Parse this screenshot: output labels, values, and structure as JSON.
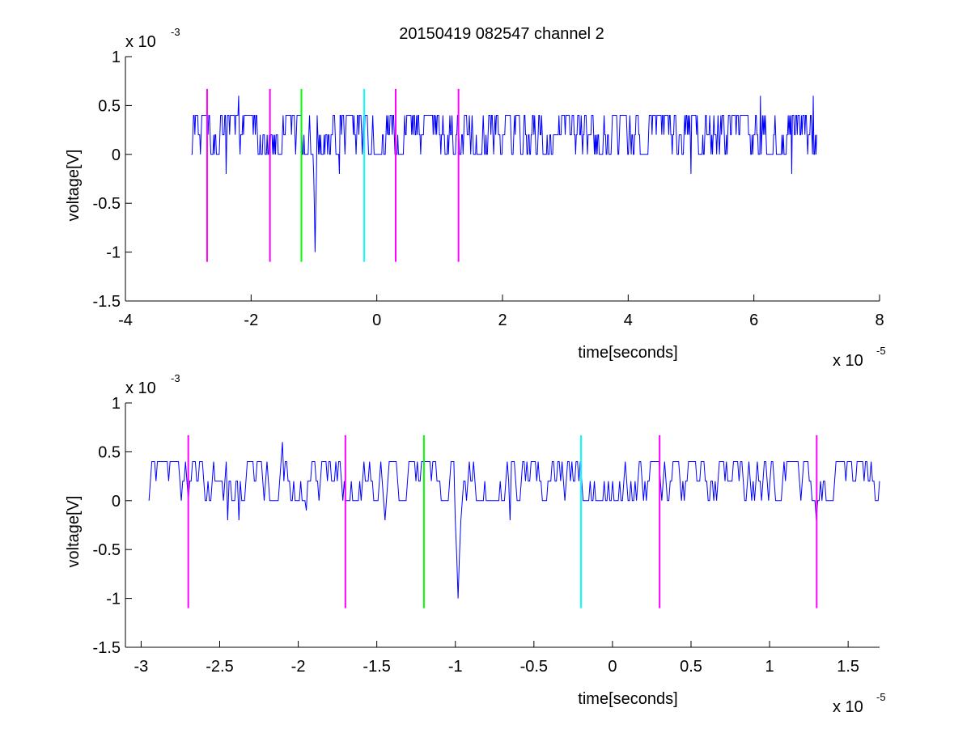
{
  "title": "20150419 082547 channel 2",
  "chart_data": [
    {
      "type": "line",
      "xlabel": "time[seconds]",
      "ylabel": "voltage[V]",
      "x_exponent_label": "x 10",
      "x_exponent": "-5",
      "y_exponent_label": "x 10",
      "y_exponent": "-3",
      "xlim": [
        -4e-05,
        8e-05
      ],
      "ylim": [
        -0.0015,
        0.001
      ],
      "x_ticks": [
        -4e-05,
        -2e-05,
        0,
        2e-05,
        4e-05,
        6e-05,
        8e-05
      ],
      "x_tick_labels": [
        "-4",
        "-2",
        "0",
        "2",
        "4",
        "6",
        "8"
      ],
      "y_ticks": [
        -0.0015,
        -0.001,
        -0.0005,
        0,
        0.0005,
        0.001
      ],
      "y_tick_labels": [
        "-1.5",
        "-1",
        "-0.5",
        "0",
        "0.5",
        "1"
      ],
      "grid": false,
      "series": [
        {
          "color": "#0000ff",
          "x_range": [
            -2.95e-05,
            7e-05
          ],
          "baseline_levels": [
            0,
            0.0002,
            0.0004
          ],
          "peak_x": -9.8e-06,
          "peak_value": -0.001,
          "spike_points": [
            [
              -2.2e-05,
              0.0006
            ],
            [
              -2.4e-05,
              -0.0002
            ],
            [
              6.1e-05,
              0.0006
            ],
            [
              6.95e-05,
              0.0006
            ],
            [
              -6e-06,
              -0.0002
            ],
            [
              5e-05,
              -0.0002
            ],
            [
              6.6e-05,
              -0.0002
            ]
          ]
        }
      ],
      "markers": [
        {
          "x": -2.7e-05,
          "color": "#ff00ff",
          "y_range": [
            -0.0011,
            0.00067
          ]
        },
        {
          "x": -1.7e-05,
          "color": "#ff00ff",
          "y_range": [
            -0.0011,
            0.00067
          ]
        },
        {
          "x": -1.2e-05,
          "color": "#00ff00",
          "y_range": [
            -0.0011,
            0.00067
          ]
        },
        {
          "x": -2e-06,
          "color": "#00ffff",
          "y_range": [
            -0.0011,
            0.00067
          ]
        },
        {
          "x": 3e-06,
          "color": "#ff00ff",
          "y_range": [
            -0.0011,
            0.00067
          ]
        },
        {
          "x": 1.3e-05,
          "color": "#ff00ff",
          "y_range": [
            -0.0011,
            0.00067
          ]
        }
      ]
    },
    {
      "type": "line",
      "xlabel": "time[seconds]",
      "ylabel": "voltage[V]",
      "x_exponent_label": "x 10",
      "x_exponent": "-5",
      "y_exponent_label": "x 10",
      "y_exponent": "-3",
      "xlim": [
        -3.1e-05,
        1.7e-05
      ],
      "ylim": [
        -0.0015,
        0.001
      ],
      "x_ticks": [
        -3e-05,
        -2.5e-05,
        -2e-05,
        -1.5e-05,
        -1e-05,
        -5e-06,
        0,
        5e-06,
        1e-05,
        1.5e-05
      ],
      "x_tick_labels": [
        "-3",
        "-2.5",
        "-2",
        "-1.5",
        "-1",
        "-0.5",
        "0",
        "0.5",
        "1",
        "1.5"
      ],
      "y_ticks": [
        -0.0015,
        -0.001,
        -0.0005,
        0,
        0.0005,
        0.001
      ],
      "y_tick_labels": [
        "-1.5",
        "-1",
        "-0.5",
        "0",
        "0.5",
        "1"
      ],
      "grid": false,
      "series": [
        {
          "color": "#0000ff",
          "x_range": [
            -2.95e-05,
            1.7e-05
          ],
          "baseline_levels": [
            0,
            0.0002,
            0.0004
          ],
          "peak_x": -9.8e-06,
          "peak_value": -0.001,
          "spike_points": [
            [
              -2.1e-05,
              0.0006
            ],
            [
              -2.2e-05,
              0.0004
            ],
            [
              -2.45e-05,
              -0.0002
            ],
            [
              -1.45e-05,
              -0.0002
            ],
            [
              -6.5e-06,
              -0.0002
            ],
            [
              1.3e-05,
              -0.0002
            ],
            [
              -2.38e-05,
              -0.0002
            ],
            [
              -1.95e-05,
              -0.0001
            ]
          ]
        }
      ],
      "markers": [
        {
          "x": -2.7e-05,
          "color": "#ff00ff",
          "y_range": [
            -0.0011,
            0.00067
          ]
        },
        {
          "x": -1.7e-05,
          "color": "#ff00ff",
          "y_range": [
            -0.0011,
            0.00067
          ]
        },
        {
          "x": -1.2e-05,
          "color": "#00ff00",
          "y_range": [
            -0.0011,
            0.00067
          ]
        },
        {
          "x": -2e-06,
          "color": "#00ffff",
          "y_range": [
            -0.0011,
            0.00067
          ]
        },
        {
          "x": 3e-06,
          "color": "#ff00ff",
          "y_range": [
            -0.0011,
            0.00067
          ]
        },
        {
          "x": 1.3e-05,
          "color": "#ff00ff",
          "y_range": [
            -0.0011,
            0.00067
          ]
        }
      ]
    }
  ]
}
